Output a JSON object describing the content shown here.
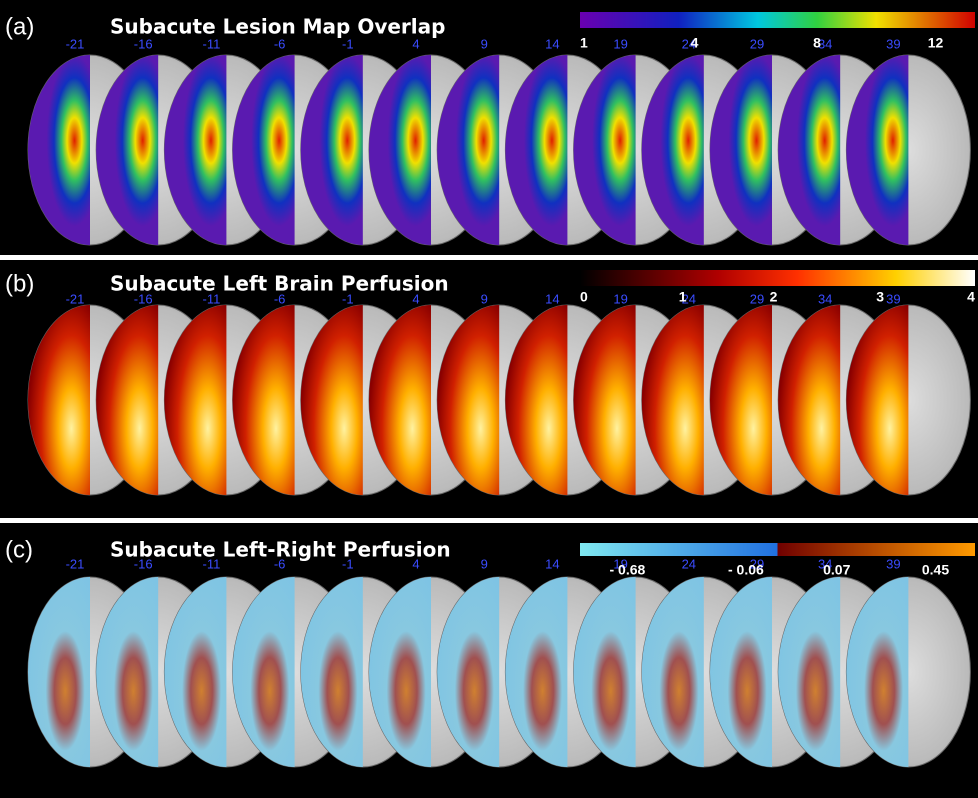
{
  "panels": [
    {
      "label": "(a)",
      "title": "Subacute Lesion Map Overlap",
      "colorbar": [
        "1",
        "4",
        "8",
        "12"
      ],
      "slices": [
        "-21",
        "-16",
        "-11",
        "-6",
        "-1",
        "4",
        "9",
        "14",
        "19",
        "24",
        "29",
        "34",
        "39"
      ]
    },
    {
      "label": "(b)",
      "title": "Subacute Left Brain Perfusion",
      "colorbar": [
        "0",
        "1",
        "2",
        "3",
        "4"
      ],
      "slices": [
        "-21",
        "-16",
        "-11",
        "-6",
        "-1",
        "4",
        "9",
        "14",
        "19",
        "24",
        "29",
        "34",
        "39"
      ]
    },
    {
      "label": "(c)",
      "title": "Subacute Left-Right Perfusion",
      "colorbar": [
        "- 0.68",
        "- 0.06",
        "0.07",
        "0.45"
      ],
      "slices": [
        "-21",
        "-16",
        "-11",
        "-6",
        "-1",
        "4",
        "9",
        "14",
        "19",
        "24",
        "29",
        "34",
        "39"
      ]
    }
  ]
}
